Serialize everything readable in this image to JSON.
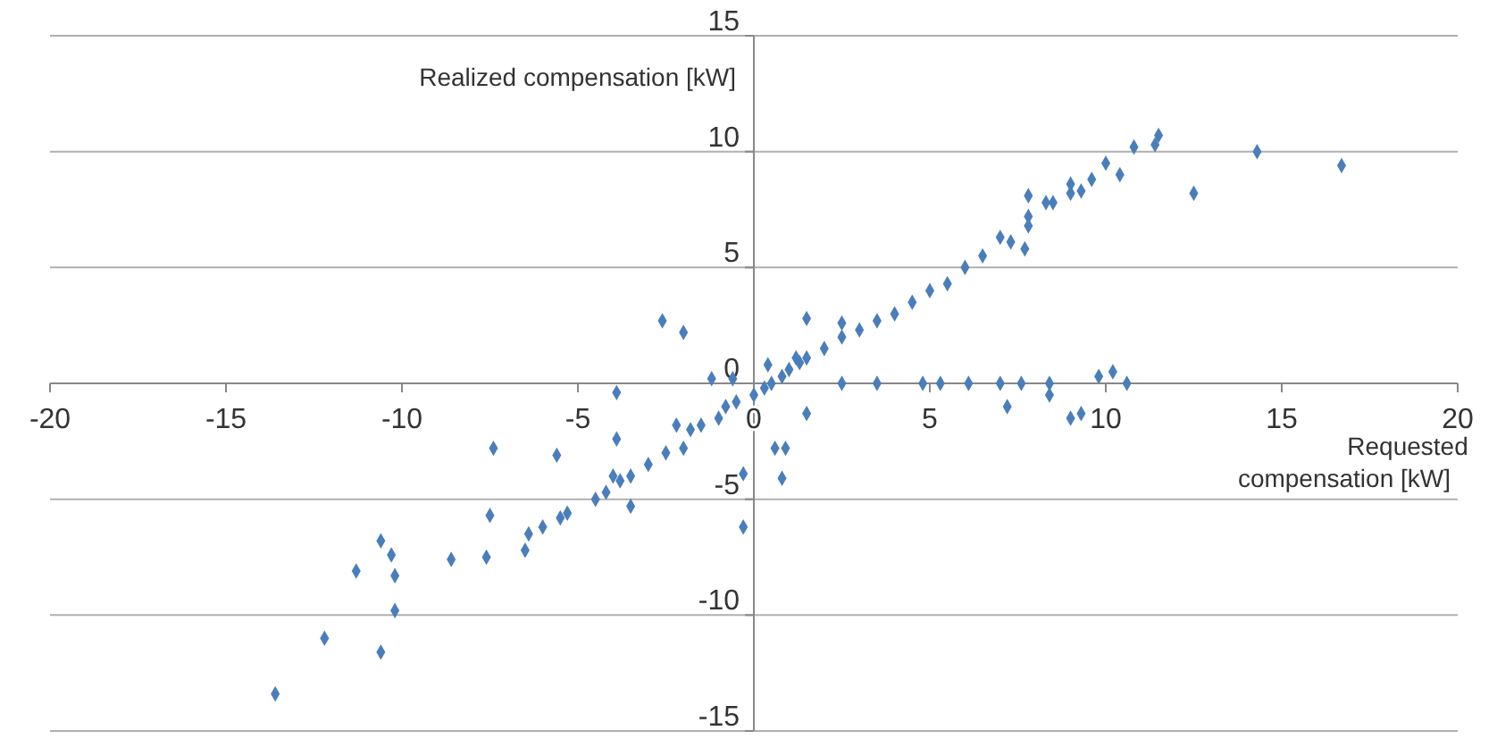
{
  "chart_data": {
    "type": "scatter",
    "xlabel": "Requested compensation [kW]",
    "ylabel": "Realized compensation [kW]",
    "xlim": [
      -20,
      20
    ],
    "ylim": [
      -15,
      15
    ],
    "xticks": [
      -20,
      -15,
      -10,
      -5,
      0,
      5,
      10,
      15,
      20
    ],
    "yticks": [
      -15,
      -10,
      -5,
      0,
      5,
      10,
      15
    ],
    "grid": "y",
    "marker": "diamond",
    "series": [
      {
        "color": "#4a7ebb",
        "x": [
          -13.6,
          -12.2,
          -11.3,
          -10.6,
          -10.3,
          -10.2,
          -10.2,
          -10.6,
          -8.6,
          -7.6,
          -7.4,
          -7.5,
          -5.6,
          -3.9,
          -3.9,
          -3.5,
          -2.6,
          -2.0,
          -2.2,
          -0.3,
          -0.3,
          0.6,
          0.9,
          0.8,
          1.5,
          -1.2,
          -0.6,
          -6.5,
          -6.4,
          -6.0,
          -5.5,
          -5.3,
          -4.5,
          -4.2,
          -4.0,
          -3.8,
          -3.5,
          -3.0,
          -2.5,
          -2.0,
          -1.8,
          -1.5,
          -1.0,
          -0.8,
          -0.5,
          0.0,
          0.3,
          0.5,
          0.8,
          1.0,
          1.3,
          1.5,
          2.0,
          2.5,
          3.0,
          3.5,
          4.0,
          4.5,
          5.0,
          5.5,
          6.0,
          6.5,
          7.0,
          7.3,
          7.7,
          7.8,
          7.8,
          7.8,
          8.3,
          8.5,
          9.0,
          9.0,
          9.3,
          9.6,
          10.0,
          10.4,
          10.8,
          11.4,
          11.5,
          14.3,
          16.7,
          12.5,
          2.5,
          3.5,
          4.8,
          5.3,
          6.1,
          7.0,
          7.6,
          8.4,
          8.4,
          7.2,
          9.0,
          9.3,
          9.8,
          10.2,
          10.6,
          1.5,
          2.5,
          1.2,
          0.4
        ],
        "values": [
          -13.4,
          -11.0,
          -8.1,
          -6.8,
          -7.4,
          -8.3,
          -9.8,
          -11.6,
          -7.6,
          -7.5,
          -2.8,
          -5.7,
          -3.1,
          -0.4,
          -2.4,
          -5.3,
          2.7,
          2.2,
          -1.8,
          -3.9,
          -6.2,
          -2.8,
          -2.8,
          -4.1,
          -1.3,
          0.2,
          0.2,
          -7.2,
          -6.5,
          -6.2,
          -5.8,
          -5.6,
          -5.0,
          -4.7,
          -4.0,
          -4.2,
          -4.0,
          -3.5,
          -3.0,
          -2.8,
          -2.0,
          -1.8,
          -1.5,
          -1.0,
          -0.8,
          -0.5,
          -0.2,
          0.0,
          0.3,
          0.6,
          0.9,
          1.1,
          1.5,
          2.0,
          2.3,
          2.7,
          3.0,
          3.5,
          4.0,
          4.3,
          5.0,
          5.5,
          6.3,
          6.1,
          5.8,
          6.8,
          7.2,
          8.1,
          7.8,
          7.8,
          8.2,
          8.6,
          8.3,
          8.8,
          9.5,
          9.0,
          10.2,
          10.3,
          10.7,
          10.0,
          9.4,
          8.2,
          0,
          0,
          0,
          0,
          0,
          0,
          0,
          0,
          -0.5,
          -1.0,
          -1.5,
          -1.3,
          0.3,
          0.5,
          0,
          2.8,
          2.6,
          1.1,
          0.8
        ]
      }
    ]
  }
}
